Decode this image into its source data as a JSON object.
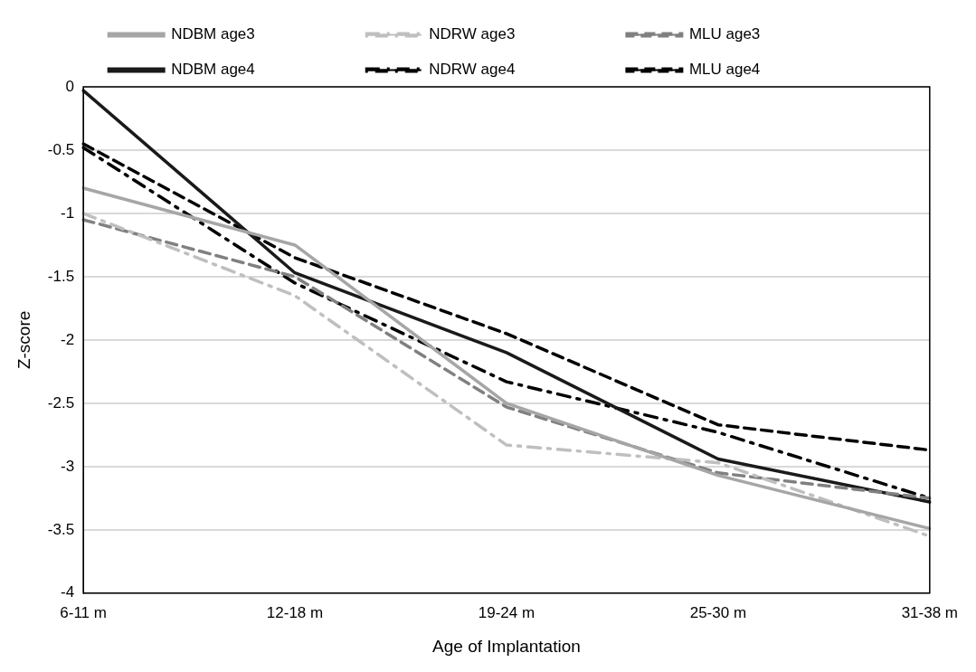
{
  "chart_data": {
    "type": "line",
    "xlabel": "Age of Implantation",
    "ylabel": "Z-score",
    "categories": [
      "6-11 m",
      "12-18 m",
      "19-24 m",
      "25-30 m",
      "31-38 m"
    ],
    "series": [
      {
        "name": "NDBM age3",
        "color": "#a6a6a6",
        "line_style": "solid",
        "values": [
          -0.8,
          -1.25,
          -2.5,
          -3.07,
          -3.49
        ]
      },
      {
        "name": "NDRW age3",
        "color": "#bfbfbf",
        "line_style": "dashdot",
        "values": [
          -1.0,
          -1.65,
          -2.83,
          -2.97,
          -3.55
        ]
      },
      {
        "name": "MLU age3",
        "color": "#808080",
        "line_style": "dashed",
        "values": [
          -1.05,
          -1.5,
          -2.53,
          -3.05,
          -3.25
        ]
      },
      {
        "name": "NDBM age4",
        "color": "#1a1a1a",
        "line_style": "solid",
        "values": [
          -0.03,
          -1.47,
          -2.1,
          -2.94,
          -3.28
        ]
      },
      {
        "name": "NDRW age4",
        "color": "#000000",
        "line_style": "dashdot",
        "values": [
          -0.48,
          -1.55,
          -2.33,
          -2.73,
          -3.25
        ]
      },
      {
        "name": "MLU age4",
        "color": "#000000",
        "line_style": "dashed",
        "values": [
          -0.45,
          -1.35,
          -1.95,
          -2.67,
          -2.87
        ]
      }
    ],
    "ylim": [
      -4,
      0
    ],
    "yticks": [
      0,
      -0.5,
      -1,
      -1.5,
      -2,
      -2.5,
      -3,
      -3.5,
      -4
    ],
    "grid": "y",
    "legend": "top",
    "marker": "none"
  }
}
